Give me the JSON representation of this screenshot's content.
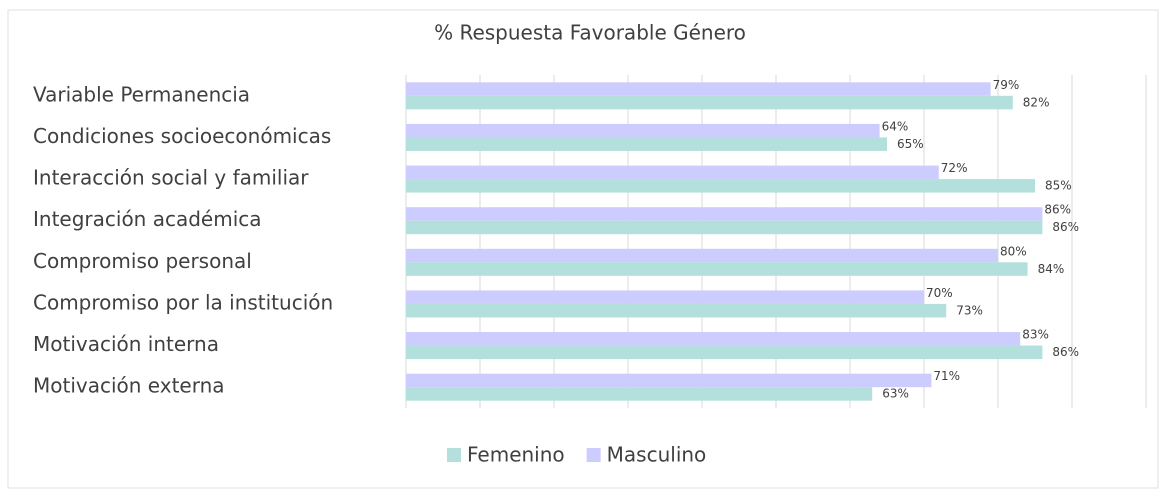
{
  "chart_data": {
    "type": "bar",
    "orientation": "horizontal",
    "title": "% Respuesta Favorable Género",
    "categories": [
      "Variable Permanencia",
      "Condiciones socioeconómicas",
      "Interacción social y familiar",
      "Integración académica",
      "Compromiso personal",
      "Compromiso por la institución",
      "Motivación interna",
      "Motivación externa"
    ],
    "series": [
      {
        "name": "Masculino",
        "color": "#ccccff",
        "values": [
          79,
          64,
          72,
          86,
          80,
          70,
          83,
          71
        ],
        "value_labels": [
          "79%",
          "64%",
          "72%",
          "86%",
          "80%",
          "70%",
          "83%",
          "71%"
        ]
      },
      {
        "name": "Femenino",
        "color": "#b3e0dc",
        "values": [
          82,
          65,
          85,
          86,
          84,
          73,
          86,
          63
        ],
        "value_labels": [
          "82%",
          "65%",
          "85%",
          "86%",
          "84%",
          "73%",
          "86%",
          "63%"
        ]
      }
    ],
    "legend_order": [
      "Femenino",
      "Masculino"
    ],
    "xlim": [
      0,
      100
    ],
    "xticks": [
      0,
      10,
      20,
      30,
      40,
      50,
      60,
      70,
      80,
      90,
      100
    ],
    "grid": true
  }
}
